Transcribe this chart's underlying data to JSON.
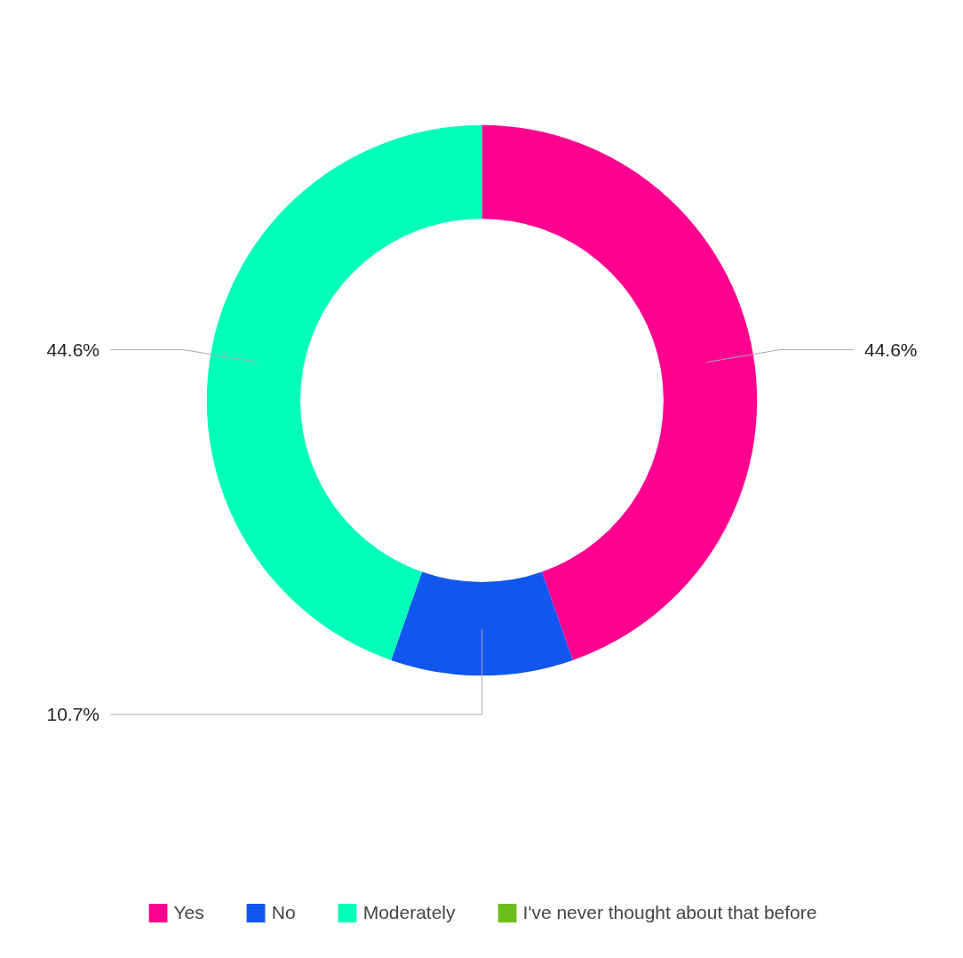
{
  "chart_data": {
    "type": "donut",
    "categories": [
      "Yes",
      "No",
      "Moderately",
      "I've never thought about that before"
    ],
    "values": [
      44.6,
      10.7,
      44.6,
      0
    ],
    "colors": [
      "#ff0090",
      "#1156ee",
      "#00ffb8",
      "#6cbf1a"
    ],
    "value_labels": [
      "44.6%",
      "10.7%",
      "44.6%",
      null
    ],
    "legend": "bottom"
  }
}
